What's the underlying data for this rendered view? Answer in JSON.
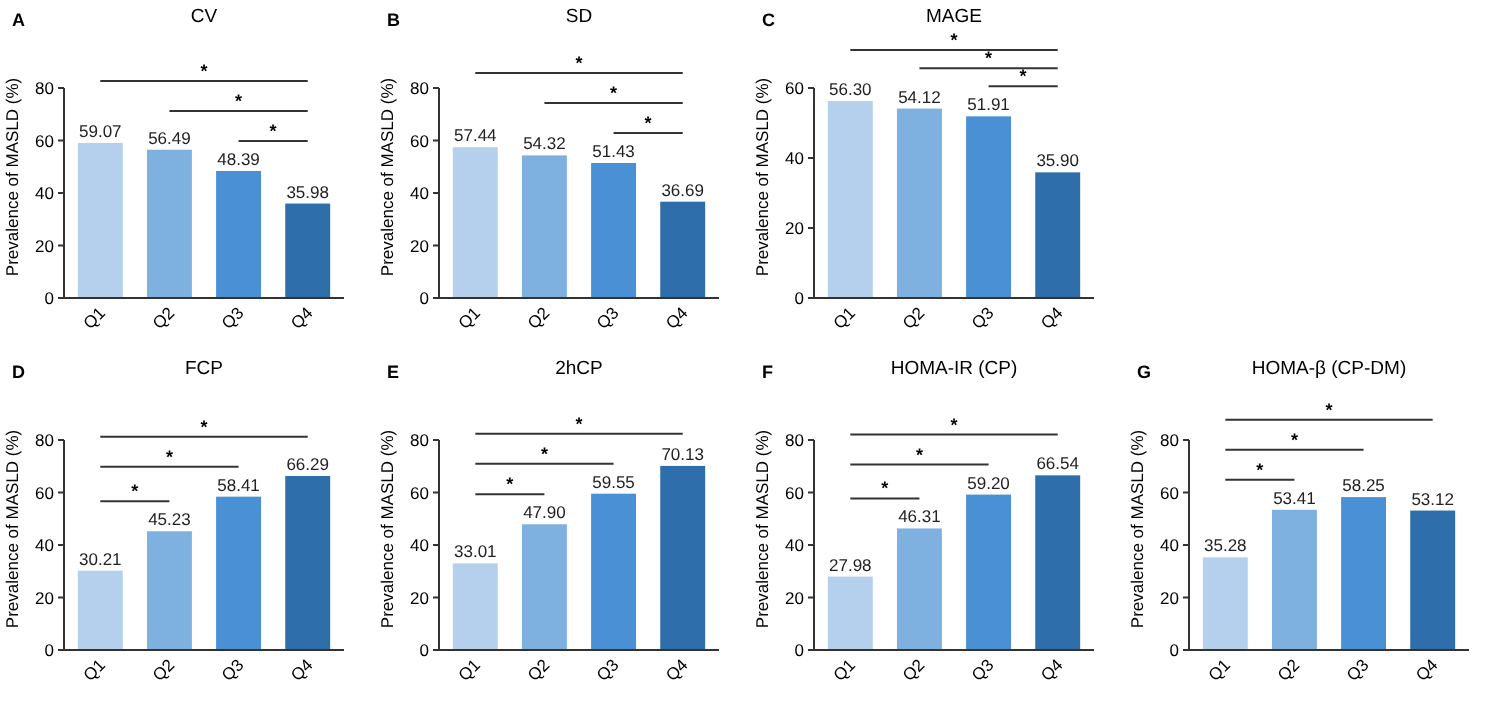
{
  "chart_data": [
    {
      "type": "bar",
      "title": "CV",
      "ylabel": "Prevalence of MASLD (%)",
      "categories": [
        "Q1",
        "Q2",
        "Q3",
        "Q4"
      ],
      "values": [
        59.07,
        56.49,
        48.39,
        35.98
      ],
      "value_labels": [
        "59.07",
        "56.49",
        "48.39",
        "35.98"
      ],
      "colors": [
        "#b4d0ec",
        "#7eb0e0",
        "#4a90d4",
        "#2e6eaa"
      ],
      "ylim": [
        0,
        80
      ],
      "yticks": [
        0,
        20,
        40,
        60,
        80
      ],
      "grid": false,
      "annotations": [
        "A",
        "*",
        "*",
        "*"
      ]
    },
    {
      "type": "bar",
      "title": "SD",
      "ylabel": "Prevalence of MASLD (%)",
      "categories": [
        "Q1",
        "Q2",
        "Q3",
        "Q4"
      ],
      "values": [
        57.44,
        54.32,
        51.43,
        36.69
      ],
      "value_labels": [
        "57.44",
        "54.32",
        "51.43",
        "36.69"
      ],
      "colors": [
        "#b4d0ec",
        "#7eb0e0",
        "#4a90d4",
        "#2e6eaa"
      ],
      "ylim": [
        0,
        80
      ],
      "yticks": [
        0,
        20,
        40,
        60,
        80
      ],
      "grid": false,
      "annotations": [
        "B",
        "*",
        "*",
        "*"
      ]
    },
    {
      "type": "bar",
      "title": "MAGE",
      "ylabel": "Prevalence of MASLD (%)",
      "categories": [
        "Q1",
        "Q2",
        "Q3",
        "Q4"
      ],
      "values": [
        56.3,
        54.12,
        51.91,
        35.9
      ],
      "value_labels": [
        "56.30",
        "54.12",
        "51.91",
        "35.90"
      ],
      "colors": [
        "#b4d0ec",
        "#7eb0e0",
        "#4a90d4",
        "#2e6eaa"
      ],
      "ylim": [
        0,
        60
      ],
      "yticks": [
        0,
        20,
        40,
        60
      ],
      "grid": false,
      "annotations": [
        "C",
        "*",
        "*",
        "*"
      ]
    },
    {
      "type": "bar",
      "title": "FCP",
      "ylabel": "Prevalence of MASLD (%)",
      "categories": [
        "Q1",
        "Q2",
        "Q3",
        "Q4"
      ],
      "values": [
        30.21,
        45.23,
        58.41,
        66.29
      ],
      "value_labels": [
        "30.21",
        "45.23",
        "58.41",
        "66.29"
      ],
      "colors": [
        "#b4d0ec",
        "#7eb0e0",
        "#4a90d4",
        "#2e6eaa"
      ],
      "ylim": [
        0,
        80
      ],
      "yticks": [
        0,
        20,
        40,
        60,
        80
      ],
      "grid": false,
      "annotations": [
        "D",
        "*",
        "*",
        "*"
      ]
    },
    {
      "type": "bar",
      "title": "2hCP",
      "ylabel": "Prevalence of MASLD (%)",
      "categories": [
        "Q1",
        "Q2",
        "Q3",
        "Q4"
      ],
      "values": [
        33.01,
        47.9,
        59.55,
        70.13
      ],
      "value_labels": [
        "33.01",
        "47.90",
        "59.55",
        "70.13"
      ],
      "colors": [
        "#b4d0ec",
        "#7eb0e0",
        "#4a90d4",
        "#2e6eaa"
      ],
      "ylim": [
        0,
        80
      ],
      "yticks": [
        0,
        20,
        40,
        60,
        80
      ],
      "grid": false,
      "annotations": [
        "E",
        "*",
        "*",
        "*"
      ]
    },
    {
      "type": "bar",
      "title": "HOMA-IR (CP)",
      "ylabel": "Prevalence of MASLD (%)",
      "categories": [
        "Q1",
        "Q2",
        "Q3",
        "Q4"
      ],
      "values": [
        27.98,
        46.31,
        59.2,
        66.54
      ],
      "value_labels": [
        "27.98",
        "46.31",
        "59.20",
        "66.54"
      ],
      "colors": [
        "#b4d0ec",
        "#7eb0e0",
        "#4a90d4",
        "#2e6eaa"
      ],
      "ylim": [
        0,
        80
      ],
      "yticks": [
        0,
        20,
        40,
        60,
        80
      ],
      "grid": false,
      "annotations": [
        "F",
        "*",
        "*",
        "*"
      ]
    },
    {
      "type": "bar",
      "title": "HOMA-β (CP-DM)",
      "ylabel": "Prevalence of MASLD (%)",
      "categories": [
        "Q1",
        "Q2",
        "Q3",
        "Q4"
      ],
      "values": [
        35.28,
        53.41,
        58.25,
        53.12
      ],
      "value_labels": [
        "35.28",
        "53.41",
        "58.25",
        "53.12"
      ],
      "colors": [
        "#b4d0ec",
        "#7eb0e0",
        "#4a90d4",
        "#2e6eaa"
      ],
      "ylim": [
        0,
        80
      ],
      "yticks": [
        0,
        20,
        40,
        60,
        80
      ],
      "grid": false,
      "annotations": [
        "G",
        "*",
        "*",
        "*"
      ]
    }
  ]
}
